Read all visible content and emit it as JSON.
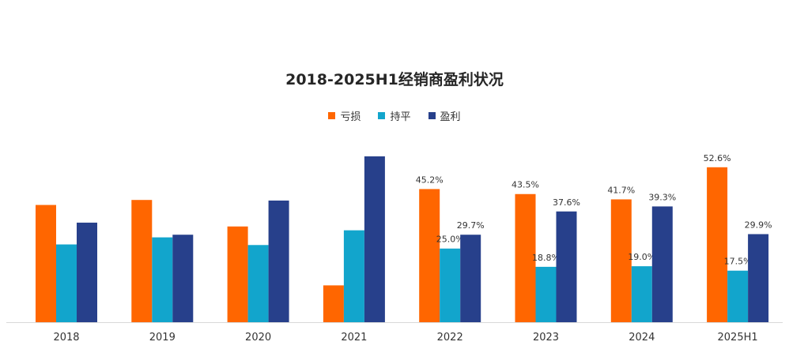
{
  "colors": {
    "loss": "#FF6600",
    "flat": "#12A5CC",
    "profit": "#27408B"
  },
  "chart_data": {
    "type": "bar",
    "title": "2018-2025H1经销商盈利状况",
    "categories": [
      "2018",
      "2019",
      "2020",
      "2021",
      "2022",
      "2023",
      "2024",
      "2025H1"
    ],
    "series": [
      {
        "name": "亏损",
        "values": [
          39.8,
          41.5,
          32.5,
          12.5,
          45.2,
          43.5,
          41.7,
          52.6
        ],
        "labels": [
          null,
          null,
          null,
          null,
          "45.2%",
          "43.5%",
          "41.7%",
          "52.6%"
        ]
      },
      {
        "name": "持平",
        "values": [
          26.4,
          28.8,
          26.2,
          31.2,
          25.0,
          18.8,
          19.0,
          17.5
        ],
        "labels": [
          null,
          null,
          null,
          null,
          "25.0%",
          "18.8%",
          "19.0%",
          "17.5%"
        ]
      },
      {
        "name": "盈利",
        "values": [
          33.8,
          29.7,
          41.3,
          56.3,
          29.7,
          37.6,
          39.3,
          29.9
        ],
        "labels": [
          null,
          null,
          null,
          null,
          "29.7%",
          "37.6%",
          "39.3%",
          "29.9%"
        ]
      }
    ],
    "ylim": [
      0,
      60
    ],
    "legend_position": "top-center",
    "grid": false
  }
}
